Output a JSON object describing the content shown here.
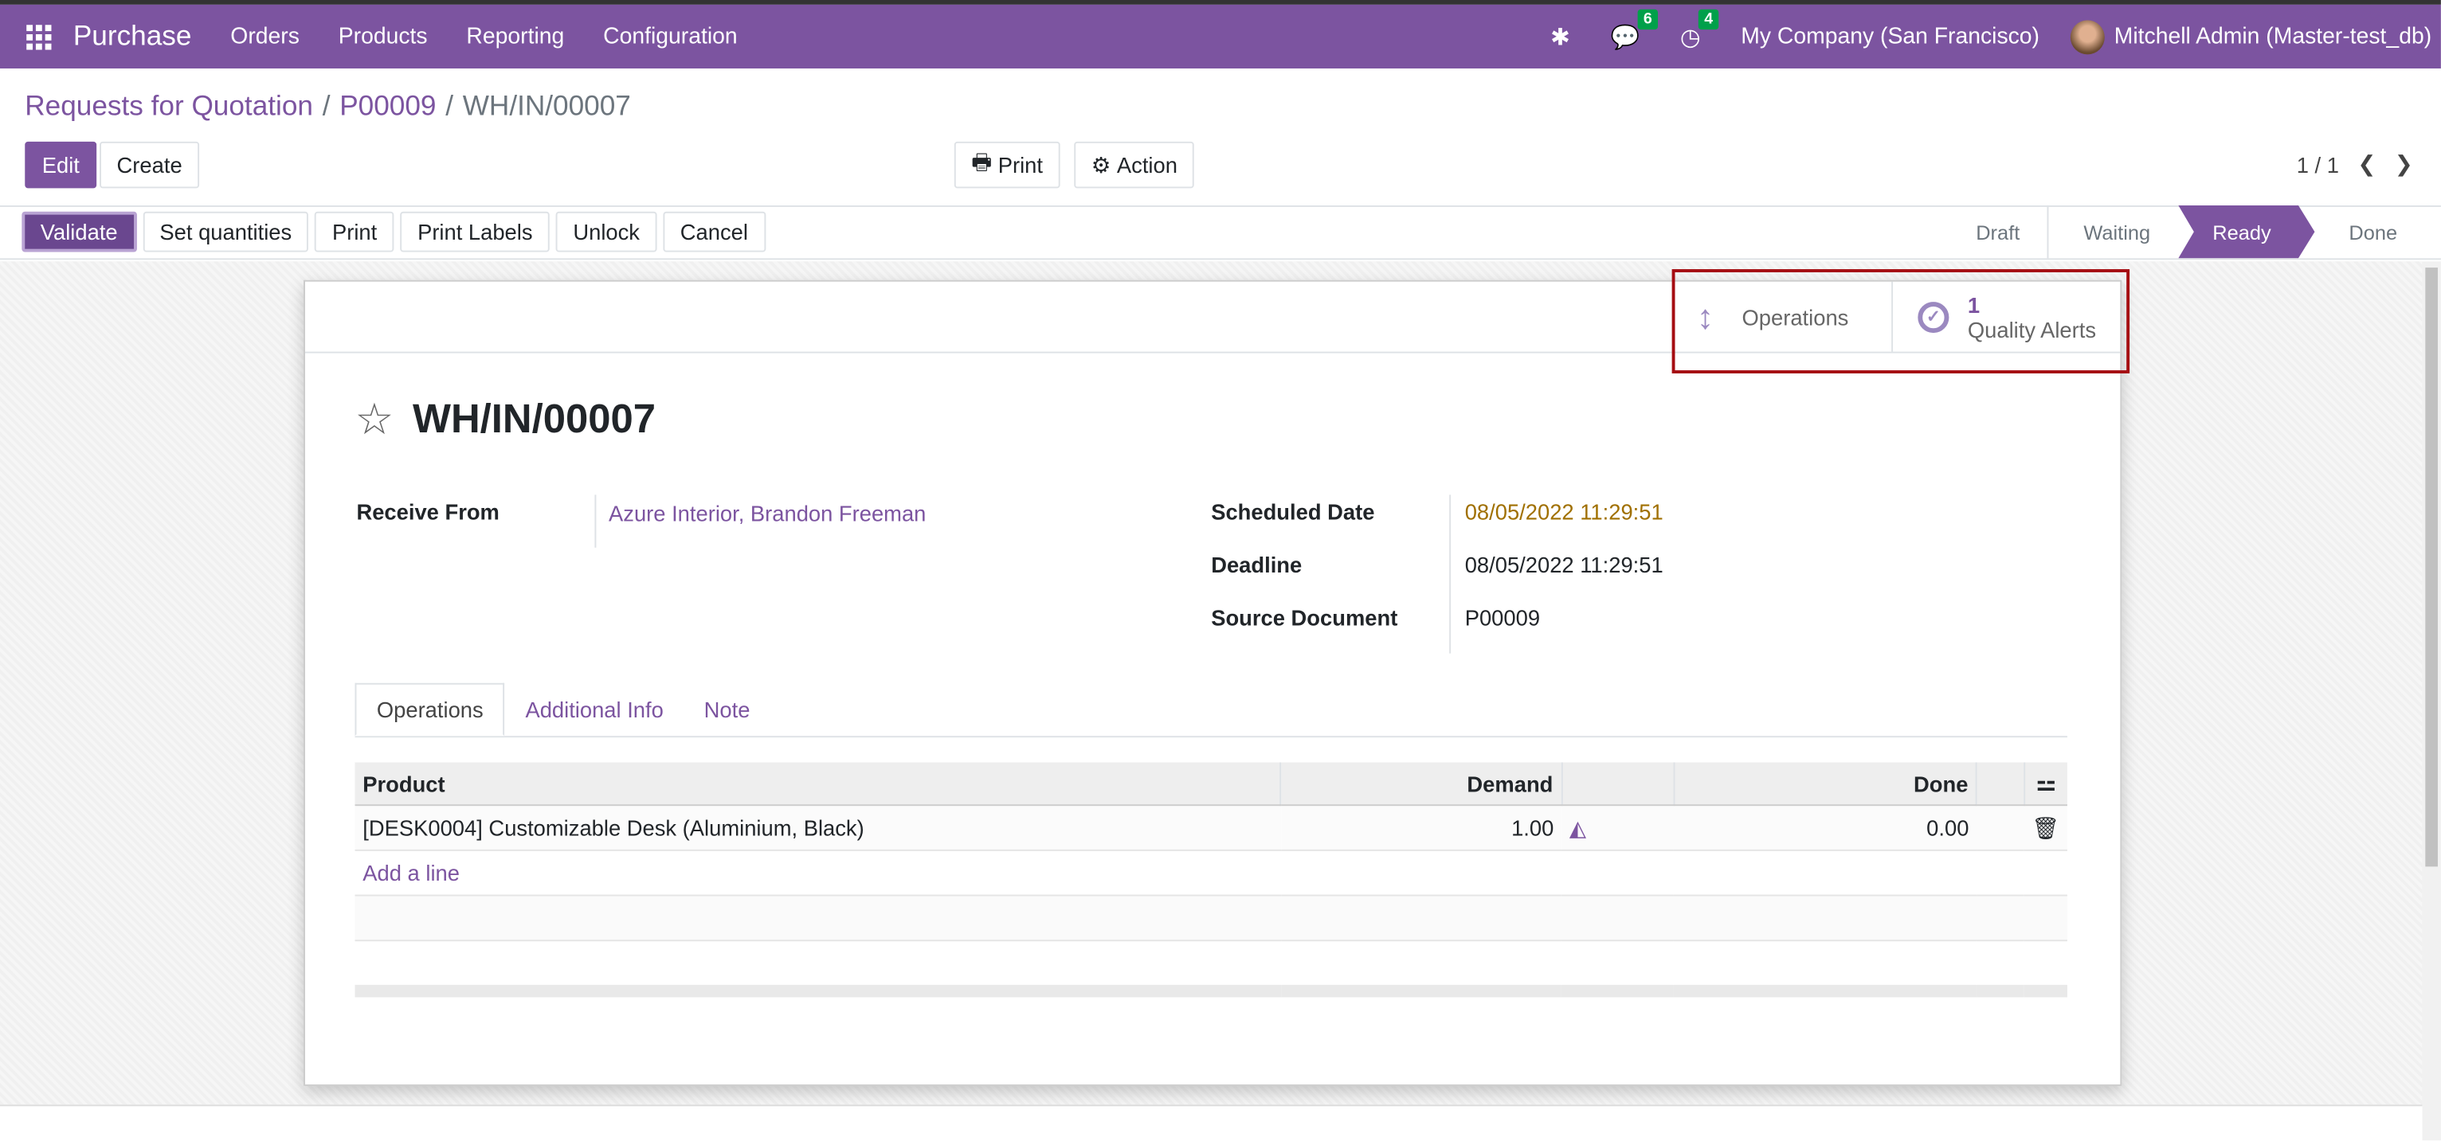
{
  "navbar": {
    "app": "Purchase",
    "menus": [
      "Orders",
      "Products",
      "Reporting",
      "Configuration"
    ],
    "messages_count": "6",
    "activities_count": "4",
    "company": "My Company (San Francisco)",
    "user": "Mitchell Admin (Master-test_db)"
  },
  "breadcrumb": {
    "items": [
      "Requests for Quotation",
      "P00009"
    ],
    "current": "WH/IN/00007"
  },
  "control": {
    "edit": "Edit",
    "create": "Create",
    "print": "Print",
    "action": "Action",
    "pager": "1 / 1"
  },
  "statusbar": {
    "buttons": [
      "Validate",
      "Set quantities",
      "Print",
      "Print Labels",
      "Unlock",
      "Cancel"
    ],
    "stages": [
      "Draft",
      "Waiting",
      "Ready",
      "Done"
    ],
    "active_stage": "Ready"
  },
  "smart_buttons": {
    "operations": "Operations",
    "quality_count": "1",
    "quality_label": "Quality Alerts"
  },
  "record": {
    "name": "WH/IN/00007",
    "receive_from_label": "Receive From",
    "receive_from": "Azure Interior, Brandon Freeman",
    "scheduled_label": "Scheduled Date",
    "scheduled": "08/05/2022 11:29:51",
    "deadline_label": "Deadline",
    "deadline": "08/05/2022 11:29:51",
    "source_label": "Source Document",
    "source": "P00009"
  },
  "tabs": [
    "Operations",
    "Additional Info",
    "Note"
  ],
  "table": {
    "headers": {
      "product": "Product",
      "demand": "Demand",
      "done": "Done"
    },
    "rows": [
      {
        "product": "[DESK0004] Customizable Desk (Aluminium, Black)",
        "demand": "1.00",
        "done": "0.00"
      }
    ],
    "add_line": "Add a line"
  },
  "colors": {
    "brand": "#7c54a0",
    "highlight": "#a50d12",
    "scheduled_date": "#a07000",
    "badge": "#00a04a"
  }
}
